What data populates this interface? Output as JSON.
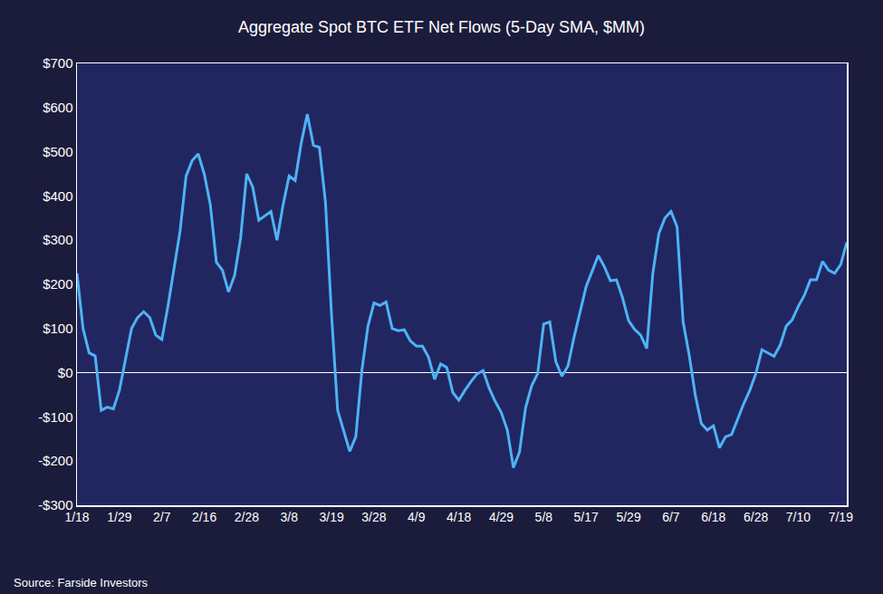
{
  "chart_data": {
    "type": "line",
    "title": "Aggregate Spot BTC ETF Net Flows (5-Day SMA, $MM)",
    "source": "Source: Farside Investors",
    "categories": [
      "1/18",
      null,
      null,
      null,
      null,
      null,
      null,
      "1/29",
      null,
      null,
      null,
      null,
      null,
      null,
      "2/7",
      null,
      null,
      null,
      null,
      null,
      null,
      "2/16",
      null,
      null,
      null,
      null,
      null,
      null,
      "2/28",
      null,
      null,
      null,
      null,
      null,
      null,
      "3/8",
      null,
      null,
      null,
      null,
      null,
      null,
      "3/19",
      null,
      null,
      null,
      null,
      null,
      null,
      "3/28",
      null,
      null,
      null,
      null,
      null,
      null,
      "4/9",
      null,
      null,
      null,
      null,
      null,
      null,
      "4/18",
      null,
      null,
      null,
      null,
      null,
      null,
      "4/29",
      null,
      null,
      null,
      null,
      null,
      null,
      "5/8",
      null,
      null,
      null,
      null,
      null,
      null,
      "5/17",
      null,
      null,
      null,
      null,
      null,
      null,
      "5/29",
      null,
      null,
      null,
      null,
      null,
      null,
      "6/7",
      null,
      null,
      null,
      null,
      null,
      null,
      "6/18",
      null,
      null,
      null,
      null,
      null,
      null,
      "6/28",
      null,
      null,
      null,
      null,
      null,
      null,
      "7/10",
      null,
      null,
      null,
      null,
      null,
      null,
      "7/19",
      null
    ],
    "values": [
      225,
      100,
      45,
      38,
      -85,
      -78,
      -82,
      -40,
      30,
      100,
      125,
      138,
      125,
      85,
      75,
      150,
      235,
      320,
      445,
      480,
      495,
      450,
      380,
      250,
      232,
      183,
      220,
      305,
      450,
      420,
      345,
      355,
      365,
      300,
      380,
      445,
      435,
      520,
      585,
      515,
      510,
      385,
      130,
      -85,
      -130,
      -178,
      -145,
      5,
      105,
      158,
      152,
      160,
      100,
      95,
      97,
      72,
      60,
      60,
      35,
      -15,
      20,
      12,
      -45,
      -62,
      -40,
      -20,
      -3,
      5,
      -35,
      -65,
      -90,
      -130,
      -215,
      -180,
      -80,
      -30,
      -2,
      110,
      115,
      25,
      -8,
      15,
      80,
      140,
      195,
      230,
      265,
      240,
      208,
      210,
      170,
      118,
      98,
      85,
      55,
      225,
      315,
      350,
      365,
      330,
      115,
      40,
      -50,
      -115,
      -130,
      -120,
      -170,
      -145,
      -140,
      -105,
      -70,
      -40,
      -2,
      52,
      45,
      37,
      62,
      105,
      120,
      150,
      175,
      210,
      210,
      252,
      232,
      225,
      245,
      295
    ],
    "color": "#4db3f5",
    "ylim": [
      -300,
      700
    ],
    "yticks": [
      {
        "value": -300,
        "label": "-$300"
      },
      {
        "value": -200,
        "label": "-$200"
      },
      {
        "value": -100,
        "label": "-$100"
      },
      {
        "value": 0,
        "label": "$0"
      },
      {
        "value": 100,
        "label": "$100"
      },
      {
        "value": 200,
        "label": "$200"
      },
      {
        "value": 300,
        "label": "$300"
      },
      {
        "value": 400,
        "label": "$400"
      },
      {
        "value": 500,
        "label": "$500"
      },
      {
        "value": 600,
        "label": "$600"
      },
      {
        "value": 700,
        "label": "$700"
      }
    ],
    "grid": false
  }
}
